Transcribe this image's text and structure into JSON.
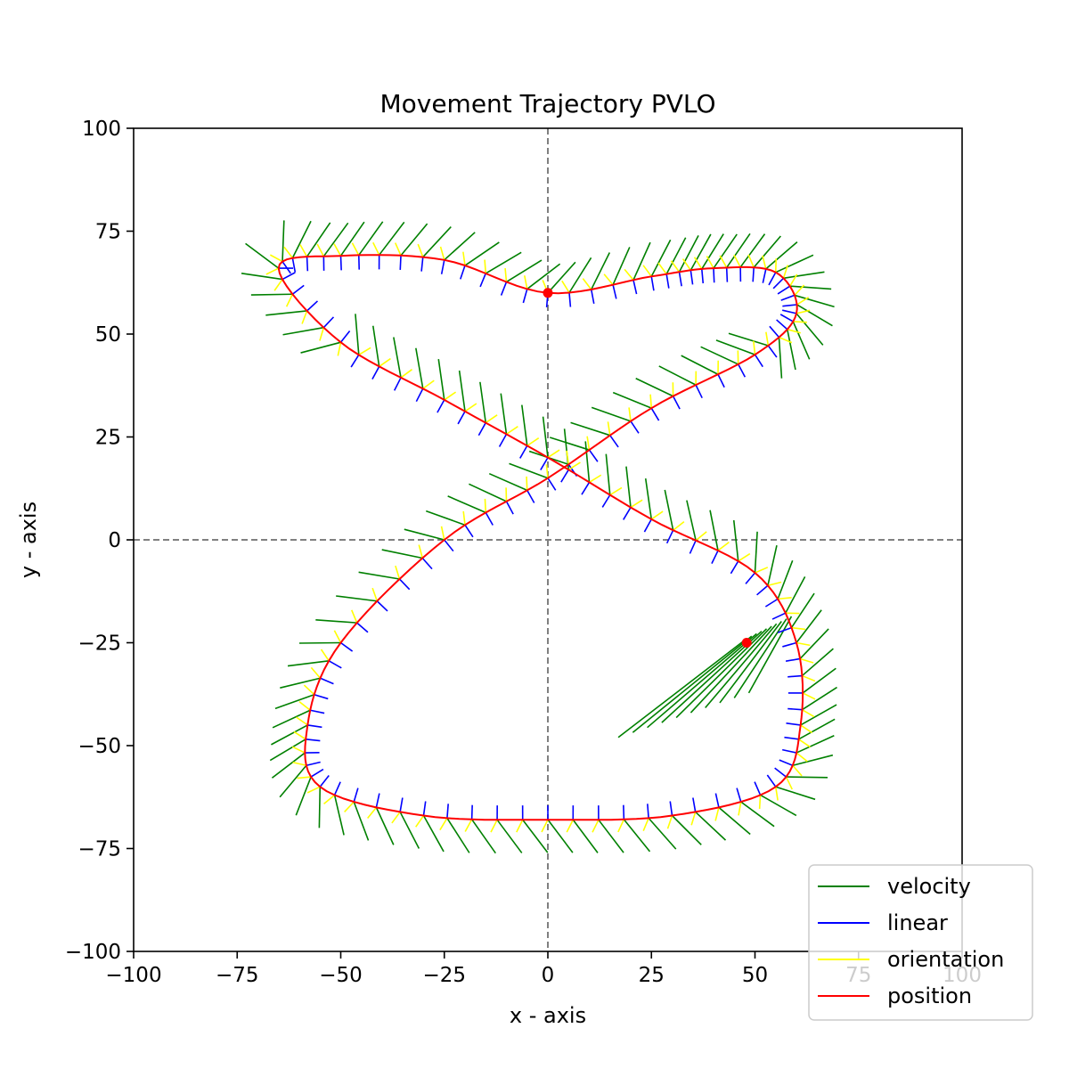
{
  "chart_data": {
    "type": "line",
    "title": "Movement Trajectory PVLO",
    "xlabel": "x - axis",
    "ylabel": "y - axis",
    "xlim": [
      -100,
      100
    ],
    "ylim": [
      -100,
      100
    ],
    "x_ticks": [
      -100,
      -75,
      -50,
      -25,
      0,
      25,
      50,
      75,
      100
    ],
    "y_ticks": [
      -100,
      -75,
      -50,
      -25,
      0,
      25,
      50,
      75,
      100
    ],
    "x_tick_labels": [
      "−100",
      "−75",
      "−50",
      "−25",
      "0",
      "25",
      "50",
      "75",
      "100"
    ],
    "y_tick_labels": [
      "−100",
      "−75",
      "−50",
      "−25",
      "0",
      "25",
      "50",
      "75",
      "100"
    ],
    "reference_lines": {
      "x": 0,
      "y": 0,
      "style": "dashed",
      "color": "#808080"
    },
    "grid": false,
    "legend_position": "bottom-right",
    "series": [
      {
        "name": "velocity",
        "color": "#008000"
      },
      {
        "name": "linear",
        "color": "#0000ff"
      },
      {
        "name": "orientation",
        "color": "#ffff00"
      },
      {
        "name": "position",
        "color": "#ff0000"
      }
    ],
    "trajectory_anchors": [
      [
        0,
        60
      ],
      [
        -25,
        68
      ],
      [
        -50,
        69
      ],
      [
        -65,
        66
      ],
      [
        -50,
        48
      ],
      [
        -25,
        34
      ],
      [
        0,
        20
      ],
      [
        25,
        5
      ],
      [
        50,
        -8
      ],
      [
        60,
        -25
      ],
      [
        61,
        -45
      ],
      [
        55,
        -60
      ],
      [
        30,
        -67
      ],
      [
        0,
        -68
      ],
      [
        -30,
        -67
      ],
      [
        -55,
        -60
      ],
      [
        -58,
        -45
      ],
      [
        -50,
        -25
      ],
      [
        -25,
        0
      ],
      [
        0,
        15
      ],
      [
        25,
        32
      ],
      [
        50,
        45
      ],
      [
        60,
        55
      ],
      [
        55,
        65
      ],
      [
        40,
        66
      ],
      [
        25,
        64
      ],
      [
        0,
        60
      ]
    ],
    "markers": [
      {
        "x": 0,
        "y": 60,
        "color": "#ff0000"
      },
      {
        "x": 48,
        "y": -25,
        "color": "#ff0000"
      }
    ]
  }
}
